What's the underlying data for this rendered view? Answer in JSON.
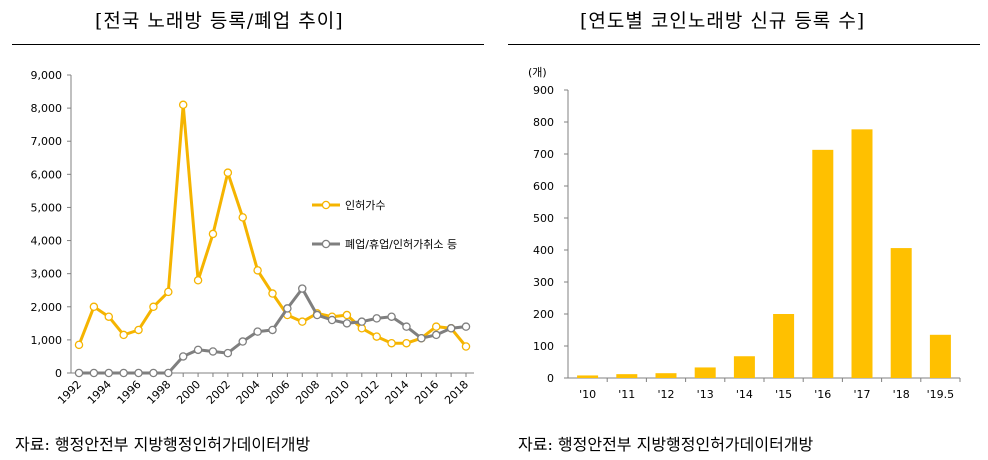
{
  "left_chart": {
    "title": "[전국 노래방 등록/폐업 추이]",
    "source": "자료: 행정안전부 지방행정인허가데이터개방",
    "legend_position": "right-middle",
    "colors": {
      "series1": "#F5B400",
      "series2": "#7F7F7F"
    }
  },
  "right_chart": {
    "title": "[연도별 코인노래방 신규 등록 수]",
    "source": "자료: 행정안전부 지방행정인허가데이터개방",
    "unit_label": "(개)",
    "colors": {
      "bar": "#FFC000"
    }
  },
  "chart_data": [
    {
      "type": "line",
      "title": "[전국 노래방 등록/폐업 추이]",
      "x": [
        1992,
        1993,
        1994,
        1995,
        1996,
        1997,
        1998,
        1999,
        2000,
        2001,
        2002,
        2003,
        2004,
        2005,
        2006,
        2007,
        2008,
        2009,
        2010,
        2011,
        2012,
        2013,
        2014,
        2015,
        2016,
        2017,
        2018
      ],
      "x_tick_labels": [
        "1992",
        "1994",
        "1996",
        "1998",
        "2000",
        "2002",
        "2004",
        "2006",
        "2008",
        "2010",
        "2012",
        "2014",
        "2016",
        "2018"
      ],
      "ylim": [
        0,
        9000
      ],
      "y_ticks": [
        0,
        1000,
        2000,
        3000,
        4000,
        5000,
        6000,
        7000,
        8000,
        9000
      ],
      "y_tick_labels": [
        "0",
        "1,000",
        "2,000",
        "3,000",
        "4,000",
        "5,000",
        "6,000",
        "7,000",
        "8,000",
        "9,000"
      ],
      "grid": false,
      "series": [
        {
          "name": "인허가수",
          "values": [
            850,
            2000,
            1700,
            1150,
            1300,
            2000,
            2450,
            8100,
            2800,
            4200,
            6050,
            4700,
            3100,
            2400,
            1750,
            1550,
            1800,
            1700,
            1750,
            1350,
            1100,
            900,
            900,
            1050,
            1400,
            1350,
            800
          ]
        },
        {
          "name": "폐업/휴업/인허가취소 등",
          "values": [
            0,
            0,
            0,
            0,
            0,
            0,
            0,
            500,
            700,
            650,
            600,
            950,
            1250,
            1300,
            1950,
            2550,
            1750,
            1600,
            1500,
            1550,
            1650,
            1700,
            1400,
            1050,
            1150,
            1350,
            1400
          ]
        }
      ]
    },
    {
      "type": "bar",
      "title": "[연도별 코인노래방 신규 등록 수]",
      "ylabel": "(개)",
      "categories": [
        "'10",
        "'11",
        "'12",
        "'13",
        "'14",
        "'15",
        "'16",
        "'17",
        "'18",
        "'19.5"
      ],
      "values": [
        8,
        12,
        15,
        33,
        68,
        200,
        713,
        777,
        406,
        135
      ],
      "ylim": [
        0,
        900
      ],
      "y_ticks": [
        0,
        100,
        200,
        300,
        400,
        500,
        600,
        700,
        800,
        900
      ],
      "grid": false
    }
  ]
}
